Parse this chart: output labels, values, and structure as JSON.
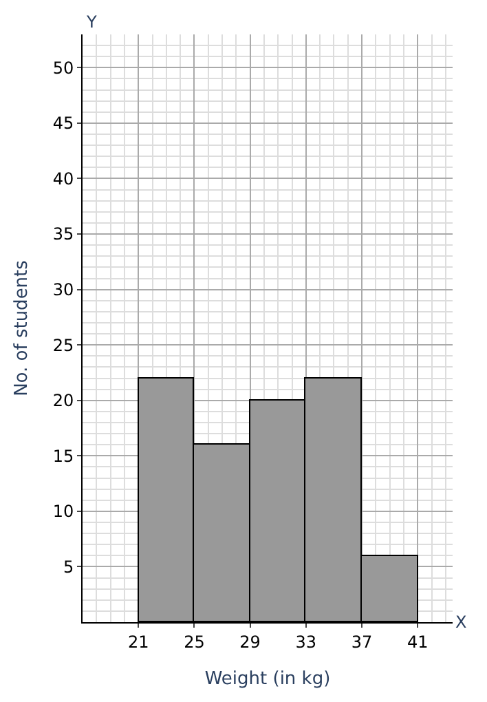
{
  "chart_data": {
    "type": "histogram",
    "xlabel": "Weight (in kg)",
    "ylabel": "No. of students",
    "bins": [
      21,
      25,
      29,
      33,
      37,
      41
    ],
    "values": [
      22,
      16,
      20,
      22,
      6
    ],
    "color": "#999999",
    "xlim": [
      17,
      43.5
    ],
    "xticks": [
      21,
      25,
      29,
      33,
      37,
      41
    ],
    "ylim": [
      0,
      53
    ],
    "yticks": [
      5,
      10,
      15,
      20,
      25,
      30,
      35,
      40,
      45,
      50
    ],
    "annotations": [
      "Y",
      "X"
    ],
    "grid": true
  }
}
